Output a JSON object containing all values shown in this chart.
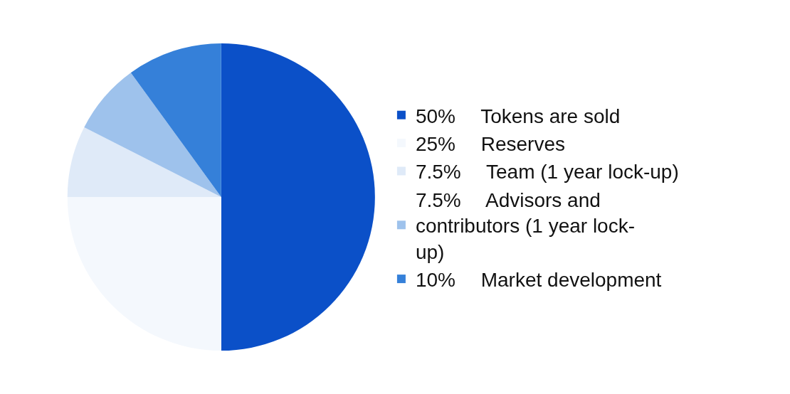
{
  "chart_data": {
    "type": "pie",
    "categories": [
      "Tokens are sold",
      "Reserves",
      "Team (1 year lock-up)",
      "Advisors and contributors (1 year lock-up)",
      "Market development"
    ],
    "values": [
      50,
      25,
      7.5,
      7.5,
      10
    ],
    "value_labels": [
      "50%",
      "25%",
      "7.5%",
      "7.5%",
      "10%"
    ],
    "colors": [
      "#0b50c8",
      "#f4f8fd",
      "#dfeaf8",
      "#9ec2ec",
      "#3580d9"
    ],
    "legend": "right"
  }
}
